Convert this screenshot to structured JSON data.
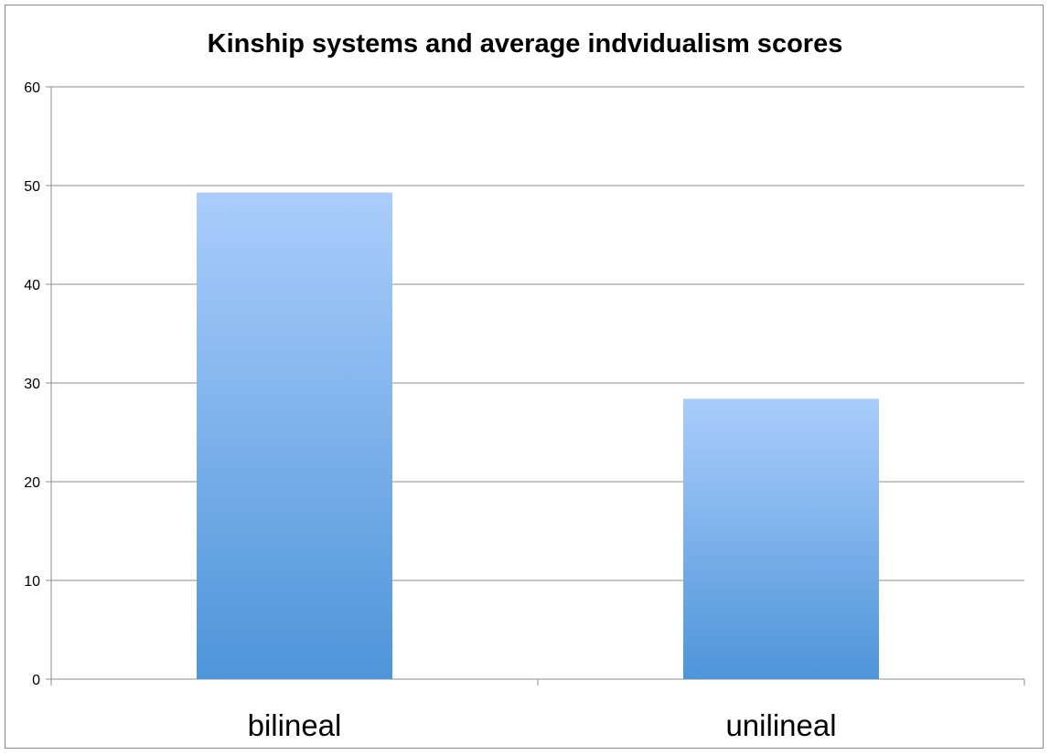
{
  "chart_data": {
    "type": "bar",
    "title": "Kinship systems and average indvidualism scores",
    "xlabel": "",
    "ylabel": "",
    "categories": [
      "bilineal",
      "unilineal"
    ],
    "values": [
      49.3,
      28.4
    ],
    "ylim": [
      0,
      60
    ],
    "yticks": [
      "0",
      "10",
      "20",
      "30",
      "40",
      "50",
      "60"
    ],
    "grid": true,
    "legend": "none",
    "colors": {
      "bar_top": "#aacdfc",
      "bar_bottom": "#4e95d9",
      "gridline": "#8c8c8c"
    }
  }
}
